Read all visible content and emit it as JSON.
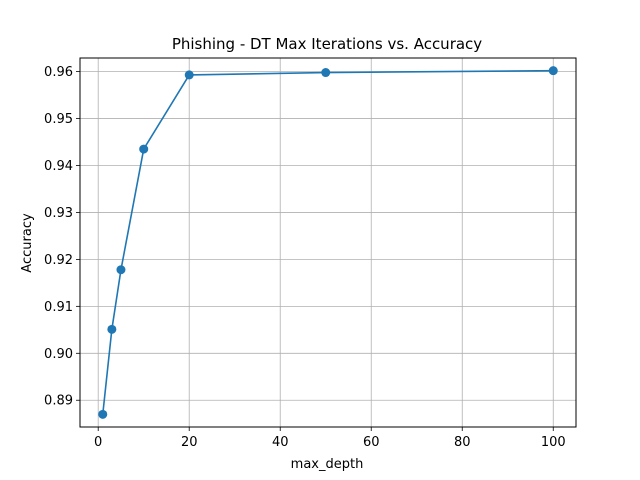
{
  "chart_data": {
    "type": "line",
    "title": "Phishing - DT Max Iterations vs. Accuracy",
    "xlabel": "max_depth",
    "ylabel": "Accuracy",
    "xlim": [
      -4,
      105
    ],
    "ylim": [
      0.8843,
      0.9629
    ],
    "xticks": [
      0,
      20,
      40,
      60,
      80,
      100
    ],
    "xtick_labels": [
      "0",
      "20",
      "40",
      "60",
      "80",
      "100"
    ],
    "yticks": [
      0.89,
      0.9,
      0.91,
      0.92,
      0.93,
      0.94,
      0.95,
      0.96
    ],
    "ytick_labels": [
      "0.89",
      "0.90",
      "0.91",
      "0.92",
      "0.93",
      "0.94",
      "0.95",
      "0.96"
    ],
    "grid": true,
    "series": [
      {
        "color": "#1f77b4",
        "marker": "circle",
        "x": [
          1,
          3,
          5,
          10,
          20,
          50,
          100
        ],
        "y": [
          0.887,
          0.9051,
          0.9178,
          0.9435,
          0.9593,
          0.9598,
          0.9602
        ]
      }
    ]
  }
}
